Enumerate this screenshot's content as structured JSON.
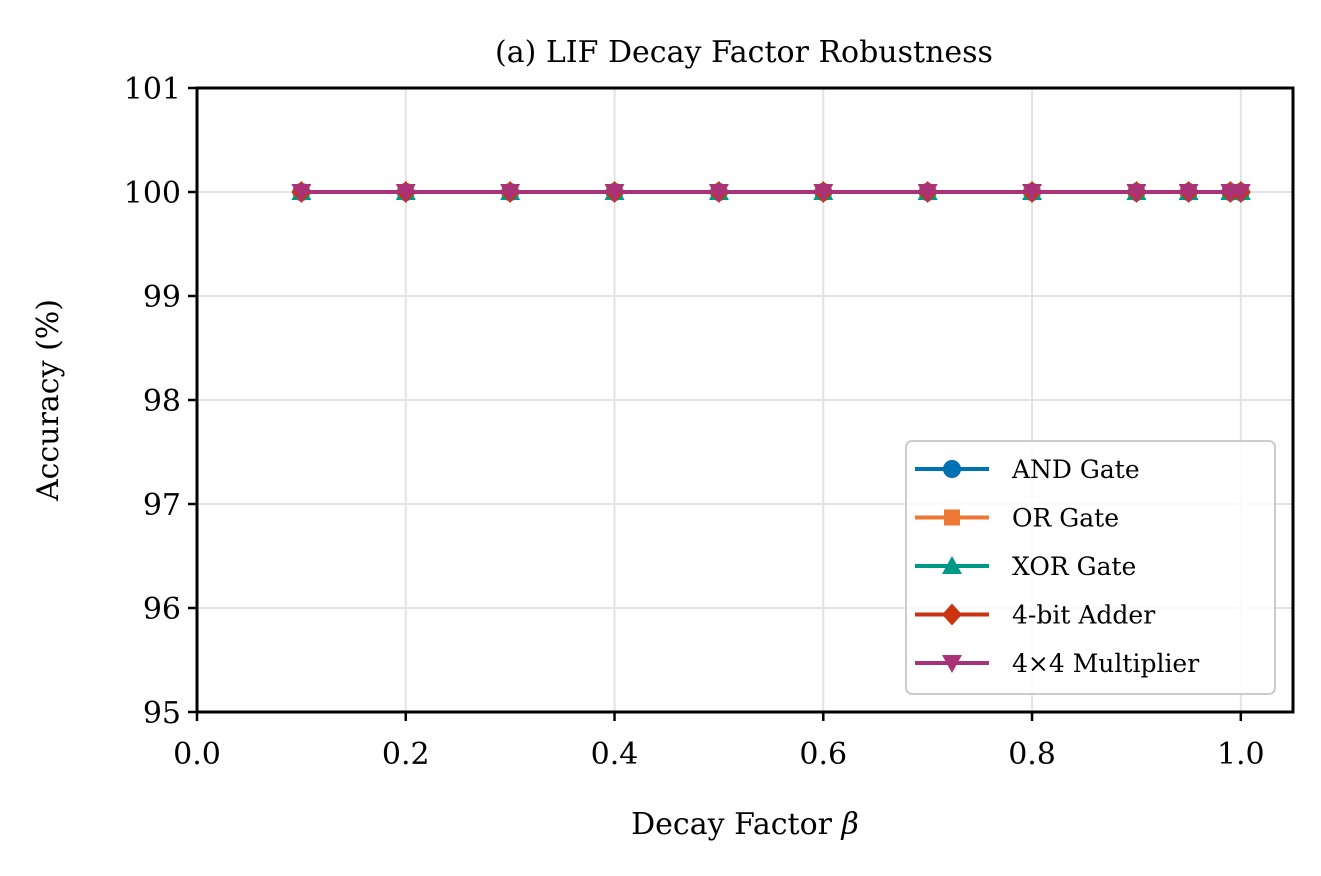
{
  "chart_data": {
    "type": "line",
    "title": "(a) LIF Decay Factor Robustness",
    "xlabel": "Decay Factor",
    "xlabel_symbol": "β",
    "ylabel": "Accuracy (%)",
    "xlim": [
      0.0,
      1.05
    ],
    "ylim": [
      95,
      101
    ],
    "xticks": [
      0.0,
      0.2,
      0.4,
      0.6,
      0.8,
      1.0
    ],
    "xtick_labels": [
      "0.0",
      "0.2",
      "0.4",
      "0.6",
      "0.8",
      "1.0"
    ],
    "yticks": [
      95,
      96,
      97,
      98,
      99,
      100,
      101
    ],
    "ytick_labels": [
      "95",
      "96",
      "97",
      "98",
      "99",
      "100",
      "101"
    ],
    "grid": true,
    "legend_position": "lower-right",
    "x": [
      0.1,
      0.2,
      0.3,
      0.4,
      0.5,
      0.6,
      0.7,
      0.8,
      0.9,
      0.95,
      0.99,
      1.0
    ],
    "series": [
      {
        "name": "AND Gate",
        "color": "#0072B2",
        "marker": "circle",
        "values": [
          100,
          100,
          100,
          100,
          100,
          100,
          100,
          100,
          100,
          100,
          100,
          100
        ]
      },
      {
        "name": "OR Gate",
        "color": "#EE7733",
        "marker": "square",
        "values": [
          100,
          100,
          100,
          100,
          100,
          100,
          100,
          100,
          100,
          100,
          100,
          100
        ]
      },
      {
        "name": "XOR Gate",
        "color": "#009988",
        "marker": "triangle-up",
        "values": [
          100,
          100,
          100,
          100,
          100,
          100,
          100,
          100,
          100,
          100,
          100,
          100
        ]
      },
      {
        "name": "4-bit Adder",
        "color": "#CC3311",
        "marker": "diamond",
        "values": [
          100,
          100,
          100,
          100,
          100,
          100,
          100,
          100,
          100,
          100,
          100,
          100
        ]
      },
      {
        "name": "4×4 Multiplier",
        "color": "#AA3377",
        "marker": "triangle-down",
        "values": [
          100,
          100,
          100,
          100,
          100,
          100,
          100,
          100,
          100,
          100,
          100,
          100
        ]
      }
    ]
  }
}
